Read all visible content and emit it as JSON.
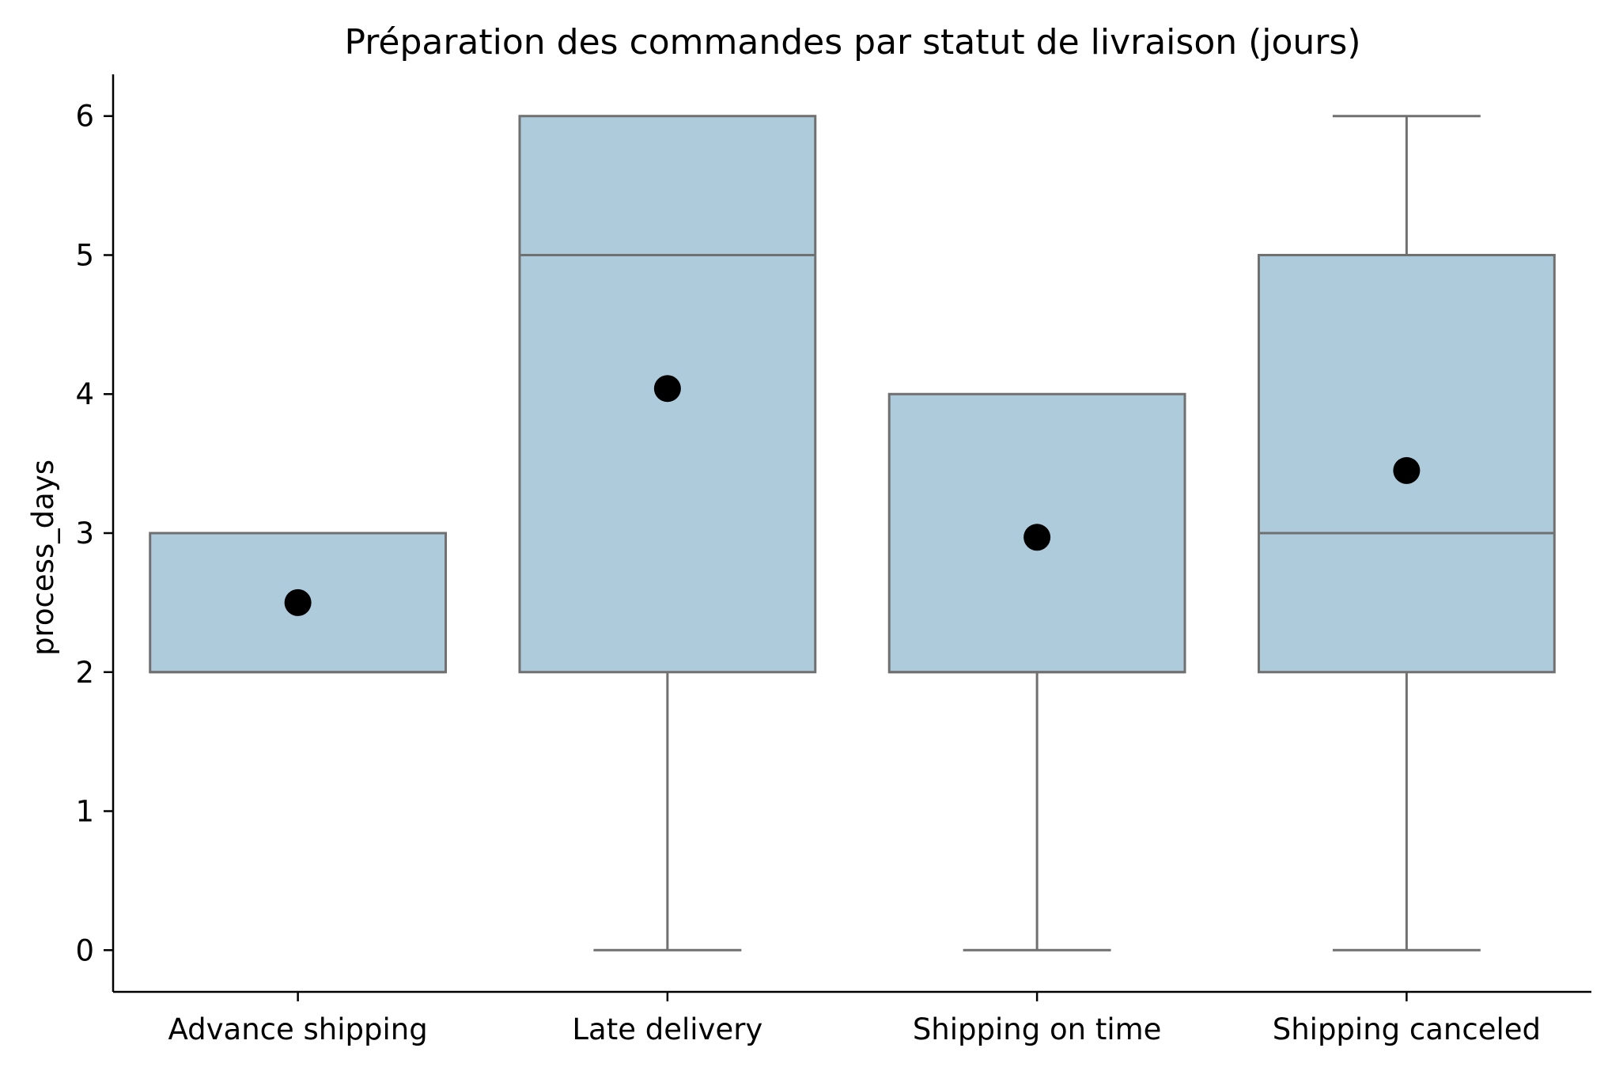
{
  "chart_data": {
    "type": "box",
    "title": "Préparation des commandes par statut de livraison (jours)",
    "xlabel": "",
    "ylabel": "process_days",
    "ylim": [
      -0.3,
      6.3
    ],
    "yticks": [
      0,
      1,
      2,
      3,
      4,
      5,
      6
    ],
    "ytick_labels": [
      "0",
      "1",
      "2",
      "3",
      "4",
      "5",
      "6"
    ],
    "categories": [
      "Advance shipping",
      "Late delivery",
      "Shipping on time",
      "Shipping canceled"
    ],
    "boxes": [
      {
        "category": "Advance shipping",
        "whisker_low": 2,
        "q1": 2,
        "median": 2,
        "q3": 3,
        "whisker_high": 3,
        "mean": 2.5
      },
      {
        "category": "Late delivery",
        "whisker_low": 0,
        "q1": 2,
        "median": 5,
        "q3": 6,
        "whisker_high": 6,
        "mean": 4.04
      },
      {
        "category": "Shipping on time",
        "whisker_low": 0,
        "q1": 2,
        "median": 2,
        "q3": 4,
        "whisker_high": 4,
        "mean": 2.97
      },
      {
        "category": "Shipping canceled",
        "whisker_low": 0,
        "q1": 2,
        "median": 3,
        "q3": 5,
        "whisker_high": 6,
        "mean": 3.45
      }
    ],
    "box_fill": "#aecbdc",
    "box_edge": "#707070",
    "mean_marker_color": "#000000",
    "grid": false,
    "legend": "none"
  }
}
